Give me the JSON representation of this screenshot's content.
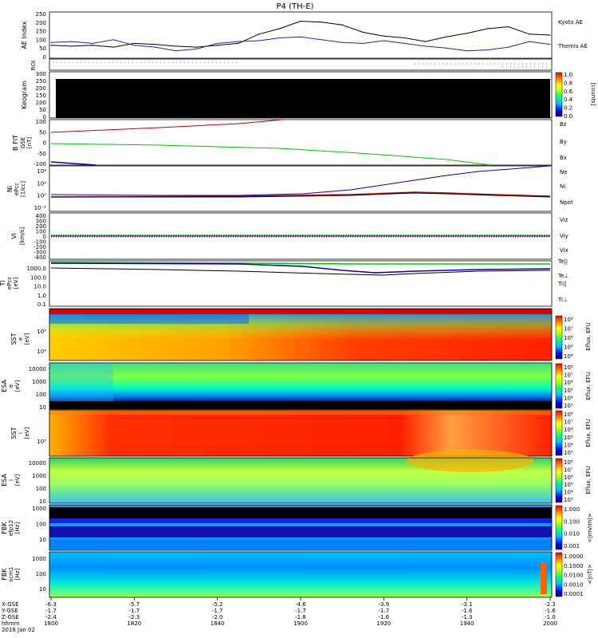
{
  "title": "P4 (TH-E)",
  "date_label": "2018 Jan 02",
  "time_axis": {
    "hhmm_label": "hhmm",
    "coord_labels": [
      "X-GSE",
      "Y-GSE",
      "Z-GSE"
    ],
    "ticks": [
      "1800",
      "1820",
      "1840",
      "1900",
      "1920",
      "1940",
      "2000"
    ],
    "x_gse": [
      "-6.3",
      "-5.7",
      "-5.2",
      "-4.6",
      "-3.9",
      "-3.1",
      "-2.3"
    ],
    "y_gse": [
      "-1.7",
      "-1.7",
      "-1.7",
      "-1.7",
      "-1.7",
      "-1.6",
      "-1.6"
    ],
    "z_gse": [
      "-2.4",
      "-2.3",
      "-2.0",
      "-1.8",
      "-1.6",
      "-1.3",
      "-1.0"
    ]
  },
  "panels": {
    "ae": {
      "ylabel": "AE Index",
      "ticks": [
        "250",
        "200",
        "150",
        "100",
        "50",
        "0"
      ],
      "legend": [
        {
          "text": "Kyoto AE",
          "color": "#2020c0"
        },
        {
          "text": "Themis AE",
          "color": "#000000"
        }
      ],
      "ylim": [
        0,
        250
      ]
    },
    "roi": {
      "ylabel": "ROI"
    },
    "keogram": {
      "ylabel": "Keogram",
      "ticks": [
        "300",
        "250",
        "200",
        "150",
        "100",
        "50",
        "0"
      ],
      "cbar_ticks": [
        "1.0",
        "0.8",
        "0.6",
        "0.4",
        "0.2",
        "0.0"
      ],
      "cbar_label": "[counts]"
    },
    "bfield": {
      "ylabel": "B FIT",
      "sub": "GSE",
      "unit": "[nT]",
      "ticks": [
        "100",
        "50",
        "0",
        "-50",
        "-100"
      ],
      "legend": [
        {
          "text": "Bz",
          "color": "#c00000"
        },
        {
          "text": "By",
          "color": "#00a000"
        },
        {
          "text": "Bx",
          "color": "#0000c0"
        }
      ]
    },
    "density": {
      "ylabel": "Ni",
      "sub": "ePcc",
      "unit": "[1/cc]",
      "ticks": [
        "10⁴",
        "10²",
        "10⁰",
        "10⁻²"
      ],
      "legend": [
        {
          "text": "Ne",
          "color": "#c00000"
        },
        {
          "text": "Ni",
          "color": "#000000"
        },
        {
          "text": "Npot",
          "color": "#0000c0"
        }
      ]
    },
    "velocity": {
      "ylabel": "Vi",
      "unit": "[km/s]",
      "ticks": [
        "400",
        "300",
        "200",
        "100",
        "0",
        "-100",
        "-200",
        "-300",
        "-400"
      ],
      "legend": [
        {
          "text": "Viz",
          "color": "#c00000"
        },
        {
          "text": "Viy",
          "color": "#00a000"
        },
        {
          "text": "Vix",
          "color": "#0000c0"
        }
      ]
    },
    "temperature": {
      "ylabel": "Ti",
      "sub": "ePcc",
      "unit": "[eV]",
      "ticks": [
        "1000.0",
        "100.0",
        "10.0",
        "1.0",
        "0.1"
      ],
      "legend": [
        {
          "text": "Te||",
          "color": "#000000"
        },
        {
          "text": "Te⊥",
          "color": "#c00000"
        },
        {
          "text": "Ti||",
          "color": "#00a000"
        },
        {
          "text": "Ti⊥",
          "color": "#0000c0"
        }
      ]
    },
    "sst_e": {
      "ylabel": "SST",
      "sub": "e",
      "unit": "[eV]",
      "ticks": [
        "10⁵",
        "10⁴"
      ],
      "cbar": [
        "10⁸",
        "10⁷",
        "10⁶",
        "10⁵",
        "10⁴"
      ],
      "cbar_label": "Eflux, EFU"
    },
    "esa_e": {
      "ylabel": "ESA",
      "sub": "e",
      "unit": "[eV]",
      "ticks": [
        "10000",
        "1000",
        "100",
        "10"
      ],
      "cbar": [
        "10⁸",
        "10⁷",
        "10⁶",
        "10⁵",
        "10⁴",
        "10³"
      ],
      "cbar_label": "Eflux, EFU"
    },
    "sst_i": {
      "ylabel": "SST",
      "sub": "i",
      "unit": "[eV]",
      "ticks": [
        "10⁵"
      ],
      "cbar": [
        "10⁸",
        "10⁷",
        "10⁶",
        "10⁵",
        "10⁴",
        "10³"
      ],
      "cbar_label": "Eflux, EFU"
    },
    "esa_i": {
      "ylabel": "ESA",
      "sub": "i",
      "unit": "[eV]",
      "ticks": [
        "10000",
        "1000",
        "100",
        "10"
      ],
      "cbar": [
        "10⁸",
        "10⁷",
        "10⁶",
        "10⁵",
        "10⁴",
        "10³"
      ],
      "cbar_label": "Eflux, EFU"
    },
    "fbk_e": {
      "ylabel": "FBK",
      "sub": "efp12",
      "unit": "[Hz]",
      "ticks": [
        "1000",
        "100",
        "10"
      ],
      "cbar": [
        "1.000",
        "0.100",
        "0.010",
        "0.001"
      ],
      "cbar_label": "<|mV/m|>"
    },
    "fbk_b": {
      "ylabel": "FBK",
      "sub": "scm1",
      "unit": "[Hz]",
      "ticks": [
        "1000",
        "100",
        "10"
      ],
      "cbar": [
        "1.0000",
        "0.1000",
        "0.0100",
        "0.0010",
        "0.0001"
      ],
      "cbar_label": "<|nT|>"
    }
  },
  "chart_data": {
    "type": "line",
    "title": "P4 (TH-E)",
    "x": [
      "1800",
      "1805",
      "1810",
      "1815",
      "1820",
      "1825",
      "1830",
      "1835",
      "1840",
      "1845",
      "1850",
      "1855",
      "1900",
      "1905",
      "1910",
      "1915",
      "1920",
      "1925",
      "1930",
      "1935",
      "1940",
      "1945",
      "1950",
      "1955",
      "2000"
    ],
    "series": [
      {
        "name": "Themis AE",
        "values": [
          70,
          65,
          70,
          60,
          80,
          75,
          65,
          60,
          70,
          80,
          130,
          160,
          200,
          195,
          180,
          140,
          120,
          110,
          90,
          115,
          135,
          160,
          170,
          130,
          125
        ]
      },
      {
        "name": "Kyoto AE",
        "values": [
          85,
          90,
          80,
          100,
          70,
          60,
          40,
          50,
          80,
          90,
          95,
          110,
          115,
          100,
          85,
          80,
          95,
          80,
          65,
          55,
          40,
          45,
          60,
          90,
          75
        ]
      }
    ],
    "ylim": [
      0,
      250
    ],
    "ylabel": "AE Index"
  }
}
